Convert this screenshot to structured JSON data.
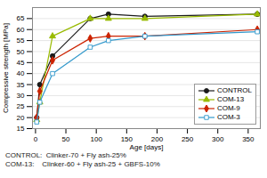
{
  "chart_data": {
    "type": "line",
    "x": [
      2,
      7,
      28,
      90,
      120,
      180,
      365
    ],
    "series": [
      {
        "name": "CONTROL",
        "color": "#1a1a1a",
        "marker": "circle",
        "values": [
          20,
          35,
          48,
          65,
          67,
          66,
          67
        ]
      },
      {
        "name": "COM-13",
        "color": "#99bb00",
        "marker": "triangle",
        "values": [
          19,
          27,
          57,
          65,
          65,
          65,
          67
        ]
      },
      {
        "name": "COM-9",
        "color": "#cc2200",
        "marker": "diamond",
        "values": [
          20,
          32,
          46,
          56,
          57,
          57,
          60
        ]
      },
      {
        "name": "COM-3",
        "color": "#3399cc",
        "marker": "open square",
        "values": [
          18,
          27,
          40,
          52,
          55,
          57,
          59
        ]
      }
    ],
    "xlabel": "Age [days]",
    "ylabel": "Compressive strength [MPa]",
    "xlim": [
      -5,
      370
    ],
    "ylim": [
      15,
      70
    ],
    "xticks": [
      0,
      50,
      100,
      150,
      200,
      250,
      300,
      350
    ],
    "yticks": [
      15,
      20,
      25,
      30,
      35,
      40,
      45,
      50,
      55,
      60,
      65
    ],
    "grid": "y",
    "legend": "lower right",
    "annotations": [
      "CONTROL:  Clinker-70 + Fly ash-25%",
      "COM-13:    Clinker-60 + Fly ash-25 + GBFS-10%"
    ]
  }
}
